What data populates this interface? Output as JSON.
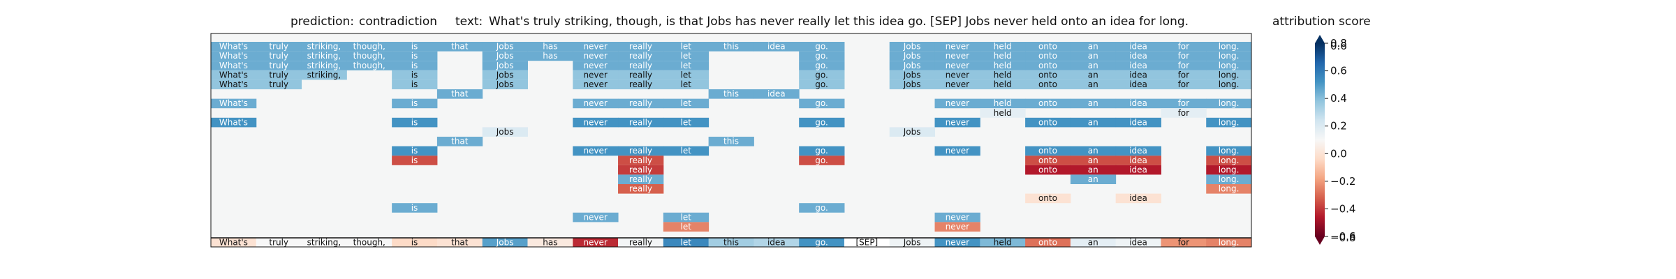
{
  "chart_data": {
    "type": "heatmap",
    "header": {
      "prediction_label": "prediction:",
      "prediction_value": "contradiction",
      "text_label": "text:",
      "text_value": "What's truly striking, though, is that Jobs has never really let this idea go. [SEP] Jobs never held onto an idea for long."
    },
    "columns": [
      "What's",
      "truly",
      "striking,",
      "though,",
      "is",
      "that",
      "Jobs",
      "has",
      "never",
      "really",
      "let",
      "this",
      "idea",
      "go.",
      "[SEP]",
      "Jobs",
      "never",
      "held",
      "onto",
      "an",
      "idea",
      "for",
      "long."
    ],
    "rows": [
      [
        0.5,
        0.5,
        0.5,
        0.5,
        0.5,
        0.5,
        0.5,
        0.5,
        0.5,
        0.5,
        0.5,
        0.5,
        0.5,
        0.5,
        null,
        0.5,
        0.5,
        0.5,
        0.5,
        0.5,
        0.5,
        0.5,
        0.5
      ],
      [
        0.5,
        0.5,
        0.5,
        0.5,
        0.5,
        null,
        0.5,
        0.5,
        0.5,
        0.5,
        0.5,
        null,
        null,
        0.5,
        null,
        0.5,
        0.5,
        0.5,
        0.5,
        0.5,
        0.5,
        0.5,
        0.5
      ],
      [
        0.5,
        0.5,
        0.5,
        0.5,
        0.5,
        null,
        0.5,
        null,
        0.5,
        0.5,
        0.5,
        null,
        null,
        0.5,
        null,
        0.5,
        0.5,
        0.5,
        0.5,
        0.5,
        0.5,
        0.5,
        0.5
      ],
      [
        0.4,
        0.4,
        0.4,
        null,
        0.4,
        null,
        0.4,
        null,
        0.4,
        0.4,
        0.4,
        null,
        null,
        0.4,
        null,
        0.4,
        0.4,
        0.4,
        0.4,
        0.4,
        0.4,
        0.4,
        0.4
      ],
      [
        0.4,
        0.4,
        null,
        null,
        0.4,
        null,
        0.4,
        null,
        0.4,
        0.4,
        0.4,
        null,
        null,
        0.4,
        null,
        0.4,
        0.4,
        0.4,
        0.4,
        0.4,
        0.4,
        0.4,
        0.4
      ],
      [
        null,
        null,
        null,
        null,
        null,
        0.5,
        null,
        null,
        null,
        null,
        null,
        0.5,
        0.5,
        null,
        null,
        null,
        null,
        null,
        null,
        null,
        null,
        null,
        null
      ],
      [
        0.5,
        null,
        null,
        null,
        0.5,
        null,
        null,
        null,
        0.5,
        0.5,
        0.5,
        null,
        null,
        0.5,
        null,
        null,
        0.5,
        0.5,
        0.5,
        0.5,
        0.5,
        0.5,
        0.5
      ],
      [
        null,
        null,
        null,
        null,
        null,
        null,
        null,
        null,
        null,
        null,
        null,
        null,
        null,
        null,
        null,
        null,
        null,
        0.1,
        null,
        null,
        null,
        0.1,
        null
      ],
      [
        0.6,
        null,
        null,
        null,
        0.6,
        null,
        null,
        null,
        0.6,
        0.6,
        0.6,
        null,
        null,
        0.6,
        null,
        null,
        0.6,
        null,
        0.6,
        0.6,
        0.6,
        null,
        0.6
      ],
      [
        null,
        null,
        null,
        null,
        null,
        null,
        0.15,
        null,
        null,
        null,
        null,
        null,
        null,
        null,
        null,
        0.15,
        null,
        null,
        null,
        null,
        null,
        null,
        null
      ],
      [
        null,
        null,
        null,
        null,
        null,
        0.5,
        null,
        null,
        null,
        null,
        null,
        0.5,
        null,
        null,
        null,
        null,
        null,
        null,
        null,
        null,
        null,
        null,
        null
      ],
      [
        null,
        null,
        null,
        null,
        0.6,
        null,
        null,
        null,
        0.6,
        0.6,
        0.6,
        null,
        null,
        0.6,
        null,
        null,
        0.6,
        null,
        0.6,
        0.6,
        0.6,
        null,
        0.6
      ],
      [
        null,
        null,
        null,
        null,
        -0.65,
        null,
        null,
        null,
        null,
        -0.65,
        null,
        null,
        null,
        -0.65,
        null,
        null,
        null,
        null,
        -0.65,
        -0.65,
        -0.65,
        null,
        -0.65
      ],
      [
        null,
        null,
        null,
        null,
        null,
        null,
        null,
        null,
        null,
        -0.7,
        null,
        null,
        null,
        null,
        null,
        null,
        null,
        null,
        -0.8,
        -0.8,
        -0.8,
        null,
        -0.8
      ],
      [
        null,
        null,
        null,
        null,
        null,
        null,
        null,
        null,
        null,
        0.5,
        null,
        null,
        null,
        null,
        null,
        null,
        null,
        null,
        null,
        0.5,
        null,
        null,
        0.5
      ],
      [
        null,
        null,
        null,
        null,
        null,
        null,
        null,
        null,
        null,
        -0.6,
        null,
        null,
        null,
        null,
        null,
        null,
        null,
        null,
        null,
        null,
        null,
        null,
        -0.5
      ],
      [
        null,
        null,
        null,
        null,
        null,
        null,
        null,
        null,
        null,
        null,
        null,
        null,
        null,
        null,
        null,
        null,
        null,
        null,
        -0.15,
        null,
        -0.15,
        null,
        null
      ],
      [
        null,
        null,
        null,
        null,
        0.5,
        null,
        null,
        null,
        null,
        null,
        null,
        null,
        null,
        0.5,
        null,
        null,
        null,
        null,
        null,
        null,
        null,
        null,
        null
      ],
      [
        null,
        null,
        null,
        null,
        null,
        null,
        null,
        null,
        0.5,
        null,
        0.5,
        null,
        null,
        null,
        null,
        null,
        0.5,
        null,
        null,
        null,
        null,
        null,
        null
      ],
      [
        null,
        null,
        null,
        null,
        null,
        null,
        null,
        null,
        null,
        null,
        -0.5,
        null,
        null,
        null,
        null,
        null,
        -0.5,
        null,
        null,
        null,
        null,
        null,
        null
      ]
    ],
    "bottom_row": [
      -0.15,
      0.0,
      0.0,
      0.0,
      -0.2,
      -0.15,
      0.55,
      -0.1,
      -0.75,
      0.02,
      0.65,
      0.35,
      0.3,
      0.6,
      null,
      0.05,
      0.6,
      0.45,
      -0.55,
      0.1,
      0.05,
      -0.45,
      -0.5
    ],
    "colorbar": {
      "title": "attribution score",
      "range": [
        -0.6,
        0.8
      ],
      "ticks": [
        0.8,
        0.6,
        0.4,
        0.2,
        0.0,
        -0.2,
        -0.4,
        -0.6
      ],
      "tick_labels": [
        "0.8",
        "0.6",
        "0.4",
        "0.2",
        "0.0",
        "−0.2",
        "−0.4",
        "−0.6"
      ],
      "extra_labels": [
        "0.6",
        "−0.8"
      ],
      "colormap": "RdBu"
    }
  }
}
